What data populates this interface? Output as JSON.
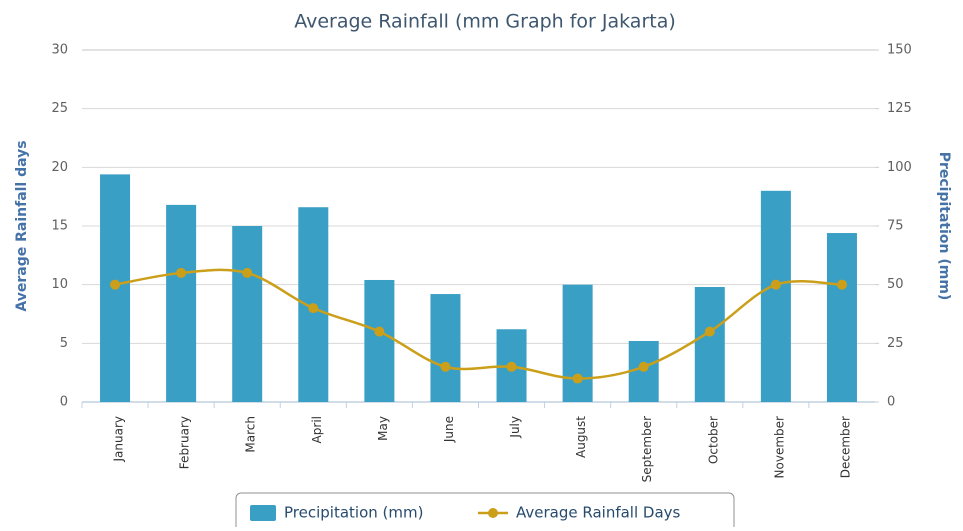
{
  "chart_data": {
    "type": "bar-line",
    "title": "Average Rainfall (mm Graph for Jakarta)",
    "y_label": "Average Rainfall days",
    "y2_label": "Precipitation (mm)",
    "categories": [
      "January",
      "February",
      "March",
      "April",
      "May",
      "June",
      "July",
      "August",
      "September",
      "October",
      "November",
      "December"
    ],
    "series": [
      {
        "name": "Precipitation (mm)",
        "type": "bar",
        "axis": "y2",
        "color": "#3a9fc4",
        "values": [
          97,
          84,
          75,
          83,
          52,
          46,
          31,
          50,
          26,
          49,
          90,
          72
        ]
      },
      {
        "name": "Average Rainfall Days",
        "type": "line",
        "color": "#cc9f1a",
        "values": [
          10,
          11,
          11,
          8,
          6,
          3,
          3,
          2,
          3,
          6,
          10,
          10
        ]
      }
    ],
    "ylim": [
      0,
      30
    ],
    "yticks": [
      0,
      5,
      10,
      15,
      20,
      25,
      30
    ],
    "y2lim": [
      0,
      150
    ],
    "y2ticks": [
      0,
      25,
      50,
      75,
      100,
      125,
      150
    ],
    "grid": true,
    "legend": "bottom"
  }
}
